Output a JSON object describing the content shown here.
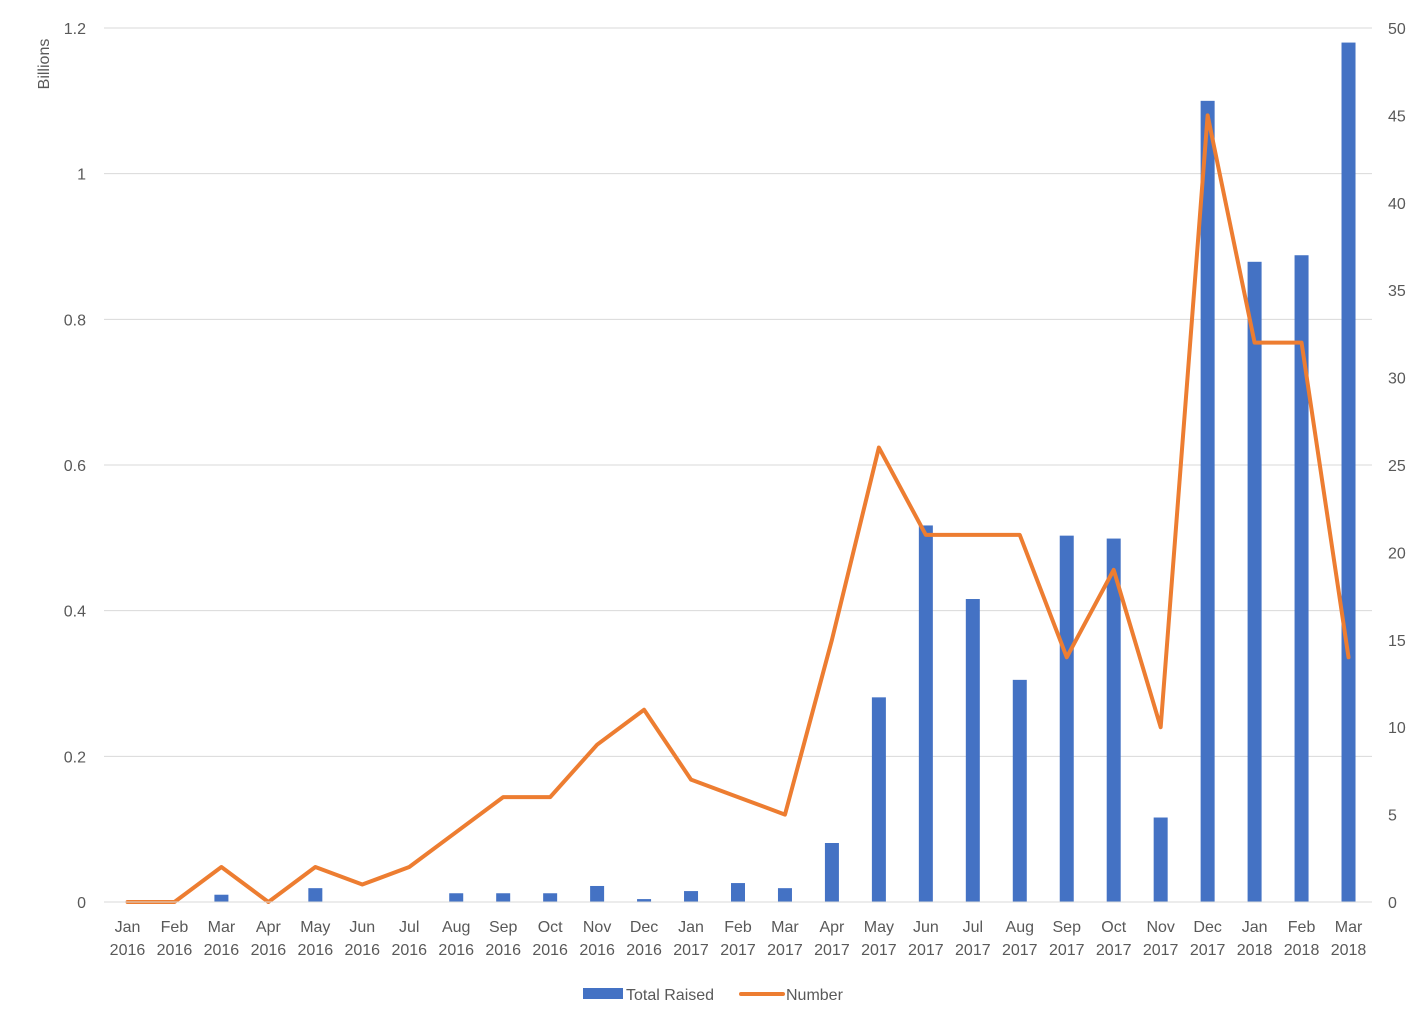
{
  "chart_data": {
    "type": "bar",
    "categories": [
      [
        "Jan",
        "2016"
      ],
      [
        "Feb",
        "2016"
      ],
      [
        "Mar",
        "2016"
      ],
      [
        "Apr",
        "2016"
      ],
      [
        "May",
        "2016"
      ],
      [
        "Jun",
        "2016"
      ],
      [
        "Jul",
        "2016"
      ],
      [
        "Aug",
        "2016"
      ],
      [
        "Sep",
        "2016"
      ],
      [
        "Oct",
        "2016"
      ],
      [
        "Nov",
        "2016"
      ],
      [
        "Dec",
        "2016"
      ],
      [
        "Jan",
        "2017"
      ],
      [
        "Feb",
        "2017"
      ],
      [
        "Mar",
        "2017"
      ],
      [
        "Apr",
        "2017"
      ],
      [
        "May",
        "2017"
      ],
      [
        "Jun",
        "2017"
      ],
      [
        "Jul",
        "2017"
      ],
      [
        "Aug",
        "2017"
      ],
      [
        "Sep",
        "2017"
      ],
      [
        "Oct",
        "2017"
      ],
      [
        "Nov",
        "2017"
      ],
      [
        "Dec",
        "2017"
      ],
      [
        "Jan",
        "2018"
      ],
      [
        "Feb",
        "2018"
      ],
      [
        "Mar",
        "2018"
      ]
    ],
    "series": [
      {
        "name": "Total Raised",
        "type": "bar",
        "axis": "left",
        "color": "#4472C4",
        "values": [
          0,
          0,
          0.01,
          0,
          0.019,
          0,
          0,
          0.012,
          0.012,
          0.012,
          0.022,
          0.004,
          0.015,
          0.026,
          0.019,
          0.081,
          0.281,
          0.517,
          0.416,
          0.305,
          0.503,
          0.499,
          0.116,
          1.1,
          0.879,
          0.888,
          1.18
        ]
      },
      {
        "name": "Number",
        "type": "line",
        "axis": "right",
        "color": "#ED7D31",
        "values": [
          0,
          0,
          2,
          0,
          2,
          1,
          2,
          4,
          6,
          6,
          9,
          11,
          7,
          6,
          5,
          15,
          26,
          21,
          21,
          21,
          14,
          19,
          10,
          45,
          32,
          32,
          14
        ]
      }
    ],
    "y_left": {
      "label": "Billions",
      "range": [
        0,
        1.2
      ],
      "ticks": [
        "0",
        "0.2",
        "0.4",
        "0.6",
        "0.8",
        "1",
        "1.2"
      ]
    },
    "y_right": {
      "range": [
        0,
        50
      ],
      "ticks": [
        "0",
        "5",
        "10",
        "15",
        "20",
        "25",
        "30",
        "35",
        "40",
        "45",
        "50"
      ]
    },
    "grid": true,
    "legend": "bottom-center"
  }
}
